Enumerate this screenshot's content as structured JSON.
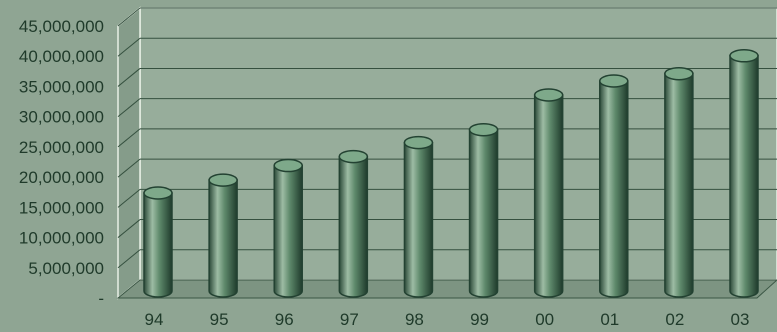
{
  "chart_data": {
    "type": "bar",
    "style": "3d-cylinder",
    "categories": [
      "94",
      "95",
      "96",
      "97",
      "98",
      "99",
      "00",
      "01",
      "02",
      "03"
    ],
    "values": [
      17500000,
      19800000,
      22400000,
      24000000,
      26500000,
      28800000,
      35000000,
      37500000,
      38800000,
      42000000
    ],
    "y_tick_labels": [
      "-",
      "5,000,000",
      "10,000,000",
      "15,000,000",
      "20,000,000",
      "25,000,000",
      "30,000,000",
      "35,000,000",
      "40,000,000",
      "45,000,000"
    ],
    "ylim": [
      0,
      45000000
    ],
    "y_step": 5000000,
    "title": "",
    "xlabel": "",
    "ylabel": "",
    "grid": true,
    "legend": "none",
    "colors": {
      "background": "#8fa593",
      "wall": "#97ad9b",
      "floor": "#7d9482",
      "bar_light": "#a4c1aa",
      "bar_mid": "#4f7a5d",
      "bar_dark": "#234232",
      "bar_top": "#7ea98a",
      "gridline": "#35503f",
      "text": "#1f3a2a"
    }
  }
}
